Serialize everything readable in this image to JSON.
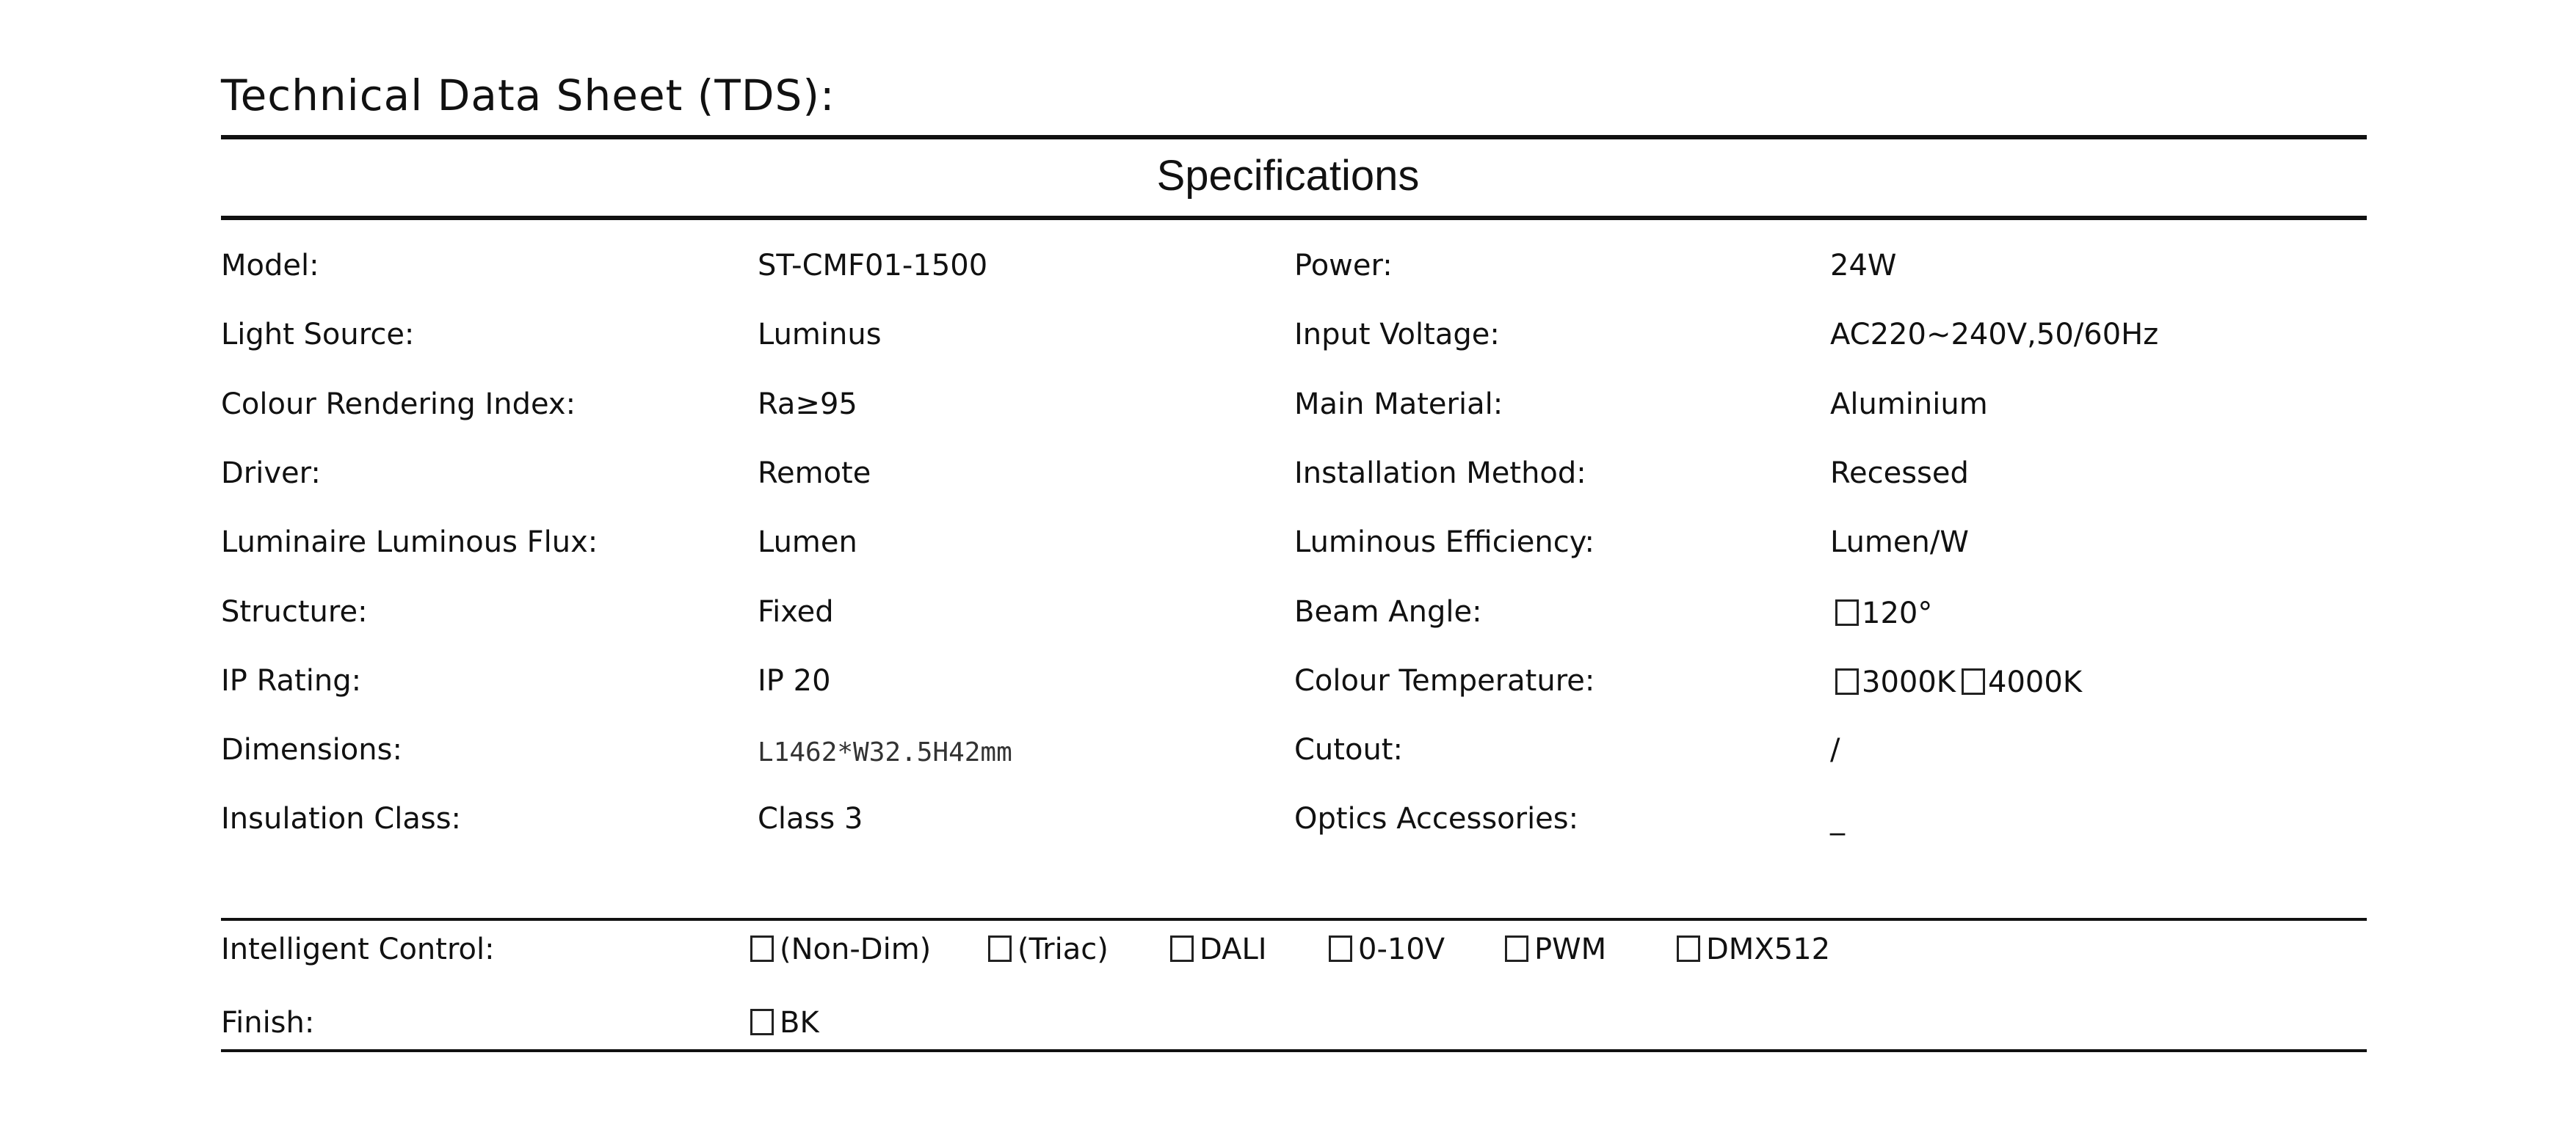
{
  "header": {
    "title": "Technical Data Sheet (TDS):",
    "section": "Specifications"
  },
  "specs_left": [
    {
      "label": "Model:",
      "value": "ST-CMF01-1500"
    },
    {
      "label": "Light Source:",
      "value": "Luminus"
    },
    {
      "label": "Colour Rendering Index:",
      "value": "Ra≥95"
    },
    {
      "label": "Driver:",
      "value": "Remote"
    },
    {
      "label": "Luminaire Luminous Flux:",
      "value": "Lumen"
    },
    {
      "label": "Structure:",
      "value": "Fixed"
    },
    {
      "label": "IP Rating:",
      "value": "IP 20"
    },
    {
      "label": "Dimensions:",
      "value": "L1462*W32.5H42mm"
    },
    {
      "label": "Insulation Class:",
      "value": "Class 3"
    }
  ],
  "specs_right": [
    {
      "label": "Power:",
      "value": "24W"
    },
    {
      "label": "Input Voltage:",
      "value": "AC220~240V,50/60Hz"
    },
    {
      "label": "Main Material:",
      "value": "Aluminium"
    },
    {
      "label": "Installation Method:",
      "value": "Recessed"
    },
    {
      "label": "Luminous Efficiency:",
      "value": "Lumen/W"
    },
    {
      "label": "Beam Angle:",
      "options": [
        "120°"
      ]
    },
    {
      "label": "Colour Temperature:",
      "options": [
        "3000K",
        "4000K"
      ]
    },
    {
      "label": "Cutout:",
      "value": "/"
    },
    {
      "label": "Optics Accessories:",
      "value": "_"
    }
  ],
  "intelligent_control": {
    "label": "Intelligent Control:",
    "options": [
      "(Non-Dim)",
      "(Triac)",
      "DALI",
      "0-10V",
      "PWM",
      "DMX512"
    ]
  },
  "finish": {
    "label": "Finish:",
    "options": [
      "BK"
    ]
  }
}
